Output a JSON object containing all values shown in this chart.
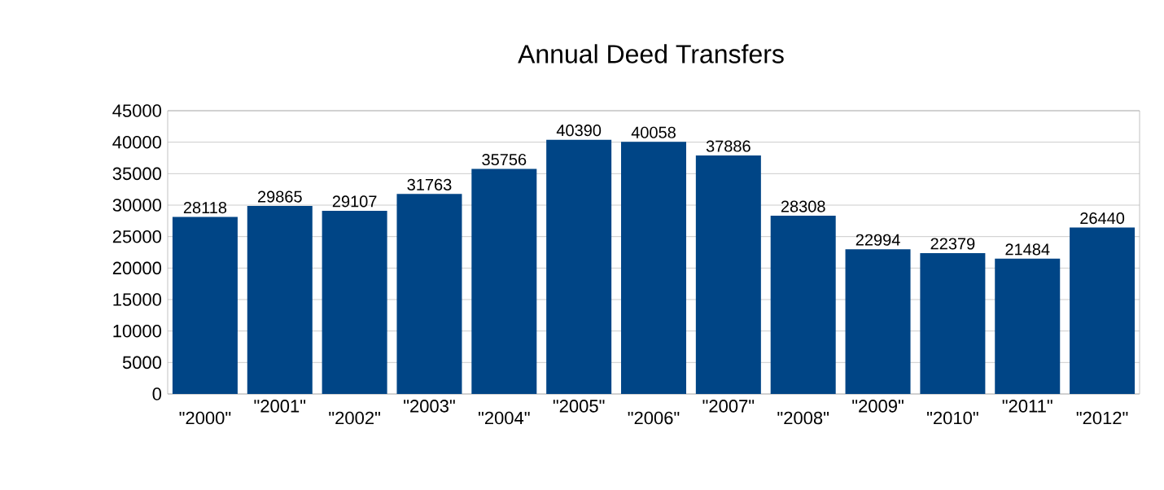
{
  "chart_data": {
    "type": "bar",
    "title": "Annual Deed Transfers",
    "categories": [
      "\"2000\"",
      "\"2001\"",
      "\"2002\"",
      "\"2003\"",
      "\"2004\"",
      "\"2005\"",
      "\"2006\"",
      "\"2007\"",
      "\"2008\"",
      "\"2009\"",
      "\"2010\"",
      "\"2011\"",
      "\"2012\""
    ],
    "values": [
      28118,
      29865,
      29107,
      31763,
      35756,
      40390,
      40058,
      37886,
      28308,
      22994,
      22379,
      21484,
      26440
    ],
    "color": "#004586",
    "ylim": [
      0,
      45000
    ],
    "yticks": [
      0,
      5000,
      10000,
      15000,
      20000,
      25000,
      30000,
      35000,
      40000,
      45000
    ],
    "grid": "y",
    "data_labels": true
  }
}
